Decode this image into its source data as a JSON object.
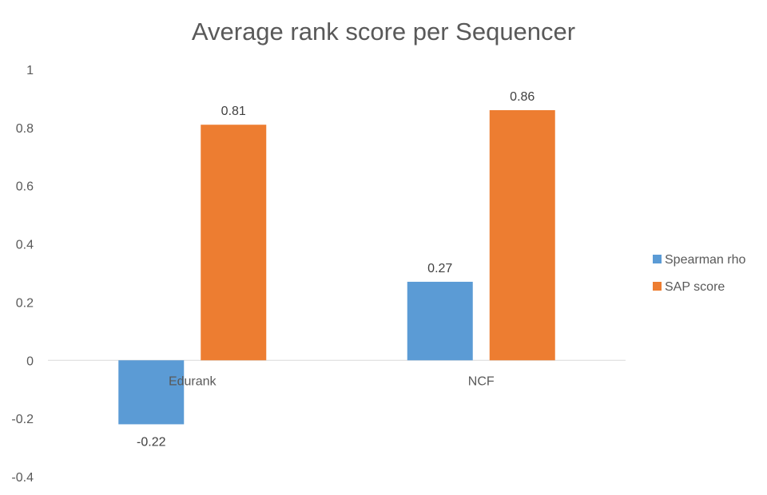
{
  "chart_data": {
    "type": "bar",
    "title": "Average rank score per Sequencer",
    "categories": [
      "Edurank",
      "NCF"
    ],
    "series": [
      {
        "name": "Spearman rho",
        "values": [
          -0.22,
          0.27
        ],
        "labels": [
          "-0.22",
          "0.27"
        ],
        "color": "#5B9BD5"
      },
      {
        "name": "SAP score",
        "values": [
          0.81,
          0.86
        ],
        "labels": [
          "0.81",
          "0.86"
        ],
        "color": "#ED7D31"
      }
    ],
    "ylim": [
      -0.4,
      1
    ],
    "yticks": [
      1,
      0.8,
      0.6,
      0.4,
      0.2,
      0,
      -0.2,
      -0.4
    ],
    "ytick_labels": [
      "1",
      "0.8",
      "0.6",
      "0.4",
      "0.2",
      "0",
      "-0.2",
      "-0.4"
    ],
    "grid": false,
    "legend": "right"
  }
}
